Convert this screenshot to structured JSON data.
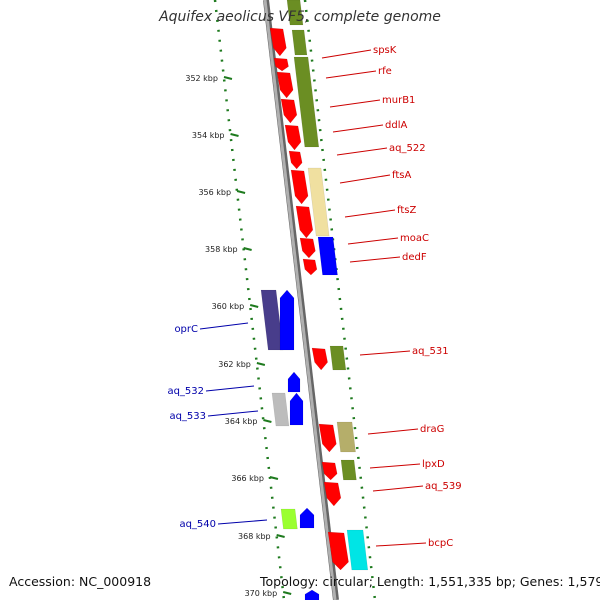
{
  "title": "Aquifex aeolicus VF5, complete genome",
  "footer": {
    "accession": "Accession: NC_000918",
    "topology": "Topology: circular; Length: 1,551,335 bp; Genes: 1,579"
  },
  "colors": {
    "backbone": "#888888",
    "tick_dots": "#1e7a1e",
    "forward_label": "#cc0000",
    "reverse_label": "#0000aa"
  },
  "ticks": [
    {
      "label": "352 kbp"
    },
    {
      "label": "354 kbp"
    },
    {
      "label": "356 kbp"
    },
    {
      "label": "358 kbp"
    },
    {
      "label": "360 kbp"
    },
    {
      "label": "362 kbp"
    },
    {
      "label": "364 kbp"
    },
    {
      "label": "366 kbp"
    },
    {
      "label": "368 kbp"
    },
    {
      "label": "370 kbp"
    }
  ],
  "genes_forward": [
    {
      "name": "spsK",
      "color": "#ff0000"
    },
    {
      "name": "rfe",
      "color": "#ff0000"
    },
    {
      "name": "murB1",
      "color": "#ff0000"
    },
    {
      "name": "ddlA",
      "color": "#ff0000"
    },
    {
      "name": "aq_522",
      "color": "#ff0000"
    },
    {
      "name": "ftsA",
      "color": "#ff0000"
    },
    {
      "name": "ftsZ",
      "color": "#ff0000"
    },
    {
      "name": "moaC",
      "color": "#ff0000"
    },
    {
      "name": "dedF",
      "color": "#ff0000"
    },
    {
      "name": "aq_531",
      "color": "#ff0000"
    },
    {
      "name": "draG",
      "color": "#ff0000"
    },
    {
      "name": "lpxD",
      "color": "#ff0000"
    },
    {
      "name": "aq_539",
      "color": "#ff0000"
    },
    {
      "name": "bcpC",
      "color": "#ff0000"
    }
  ],
  "genes_reverse": [
    {
      "name": "oprC",
      "color": "#0000ff"
    },
    {
      "name": "aq_532",
      "color": "#0000ff"
    },
    {
      "name": "aq_533",
      "color": "#0000ff"
    },
    {
      "name": "aq_540",
      "color": "#0000ff"
    }
  ],
  "cog_colors": [
    "#6b8e23",
    "#f0e0a0",
    "#483d8b",
    "#bcbcbc",
    "#b5ae6a",
    "#9aff30",
    "#00e5e5"
  ]
}
